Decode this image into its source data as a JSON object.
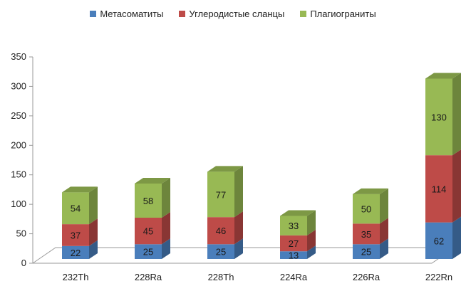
{
  "chart_data": {
    "type": "bar",
    "stacked": true,
    "three_d": true,
    "categories": [
      "232Th",
      "228Ra",
      "228Th",
      "224Ra",
      "226Ra",
      "222Rn"
    ],
    "series": [
      {
        "name": "Метасоматиты",
        "values": [
          22,
          25,
          25,
          13,
          25,
          62
        ]
      },
      {
        "name": "Углеродистые сланцы",
        "values": [
          37,
          45,
          46,
          27,
          35,
          114
        ]
      },
      {
        "name": "Плагиограниты",
        "values": [
          54,
          58,
          77,
          33,
          50,
          130
        ]
      }
    ],
    "colors": {
      "Метасоматиты": "#4a7ebb",
      "Углеродистые сланцы": "#be4b48",
      "Плагиограниты": "#98b954"
    },
    "ylim": [
      0,
      350
    ],
    "yticks": [
      0,
      50,
      100,
      150,
      200,
      250,
      300,
      350
    ],
    "legend_position": "top",
    "grid": false
  }
}
